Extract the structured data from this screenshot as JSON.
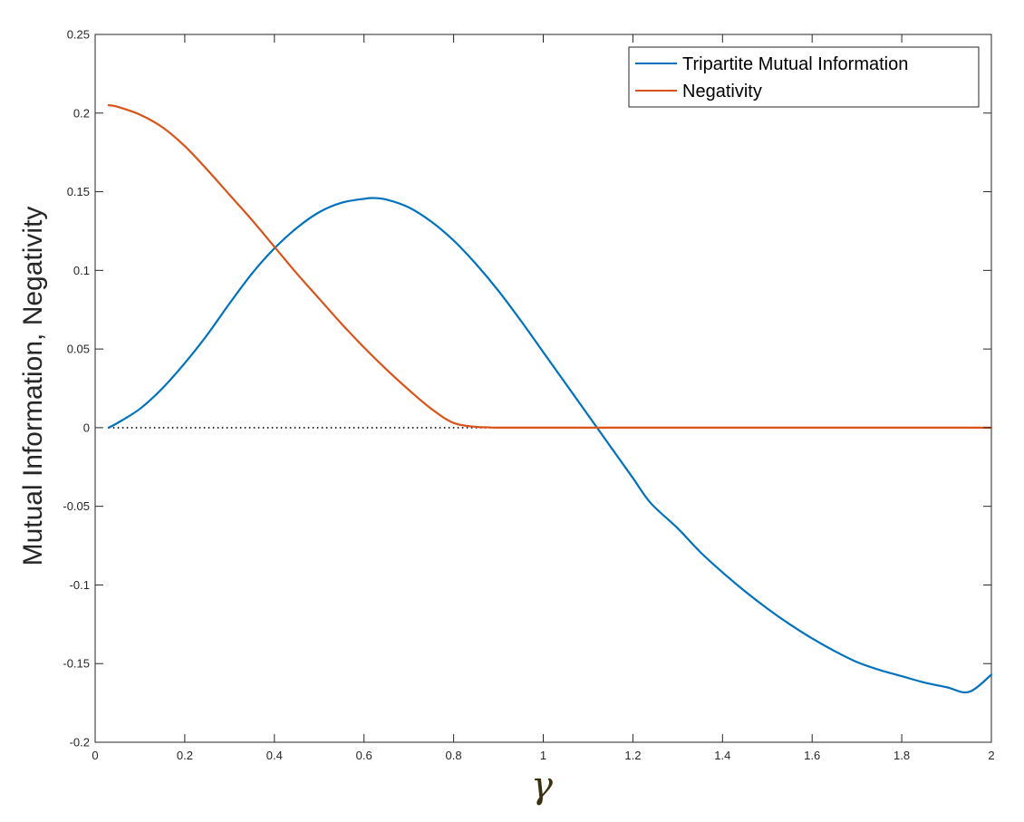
{
  "chart_data": {
    "type": "line",
    "title": "",
    "xlabel": "γ",
    "ylabel": "Mutual Information, Negativity",
    "xlim": [
      0,
      2
    ],
    "ylim": [
      -0.2,
      0.25
    ],
    "xticks": [
      0,
      0.2,
      0.4,
      0.6,
      0.8,
      1,
      1.2,
      1.4,
      1.6,
      1.8,
      2
    ],
    "xtick_labels": [
      "0",
      "0.2",
      "0.4",
      "0.6",
      "0.8",
      "1",
      "1.2",
      "1.4",
      "1.6",
      "1.8",
      "2"
    ],
    "yticks": [
      -0.2,
      -0.15,
      -0.1,
      -0.05,
      0,
      0.05,
      0.1,
      0.15,
      0.2,
      0.25
    ],
    "ytick_labels": [
      "-0.2",
      "-0.15",
      "-0.1",
      "-0.05",
      "0",
      "0.05",
      "0.1",
      "0.15",
      "0.2",
      "0.25"
    ],
    "grid": false,
    "legend_position": "top-right",
    "reference_line": {
      "y": 0,
      "style": "dotted"
    },
    "series": [
      {
        "name": "Tripartite Mutual Information",
        "color": "#0072BD",
        "x": [
          0.03,
          0.05,
          0.1,
          0.15,
          0.2,
          0.25,
          0.3,
          0.35,
          0.4,
          0.45,
          0.5,
          0.55,
          0.6,
          0.62,
          0.65,
          0.7,
          0.75,
          0.8,
          0.85,
          0.9,
          0.95,
          1.0,
          1.05,
          1.1,
          1.15,
          1.2,
          1.24,
          1.3,
          1.35,
          1.4,
          1.45,
          1.5,
          1.55,
          1.6,
          1.65,
          1.7,
          1.75,
          1.8,
          1.85,
          1.9,
          1.95,
          2.0
        ],
        "y": [
          0.0,
          0.003,
          0.012,
          0.025,
          0.041,
          0.059,
          0.079,
          0.098,
          0.114,
          0.127,
          0.137,
          0.143,
          0.1455,
          0.146,
          0.145,
          0.14,
          0.131,
          0.119,
          0.104,
          0.087,
          0.068,
          0.048,
          0.028,
          0.008,
          -0.012,
          -0.032,
          -0.048,
          -0.064,
          -0.079,
          -0.092,
          -0.104,
          -0.115,
          -0.125,
          -0.134,
          -0.142,
          -0.149,
          -0.154,
          -0.158,
          -0.162,
          -0.165,
          -0.168,
          -0.157
        ]
      },
      {
        "name": "Negativity",
        "color": "#D95319",
        "x": [
          0.03,
          0.05,
          0.1,
          0.15,
          0.2,
          0.25,
          0.3,
          0.35,
          0.4,
          0.45,
          0.5,
          0.55,
          0.6,
          0.65,
          0.7,
          0.75,
          0.8,
          0.85,
          0.88,
          0.9,
          1.0,
          1.2,
          1.4,
          1.6,
          1.8,
          2.0
        ],
        "y": [
          0.205,
          0.204,
          0.199,
          0.191,
          0.179,
          0.164,
          0.148,
          0.132,
          0.115,
          0.098,
          0.082,
          0.066,
          0.051,
          0.037,
          0.024,
          0.012,
          0.003,
          0.0005,
          0.0002,
          0.0,
          0.0,
          0.0,
          0.0,
          0.0,
          0.0,
          0.0
        ]
      }
    ]
  }
}
